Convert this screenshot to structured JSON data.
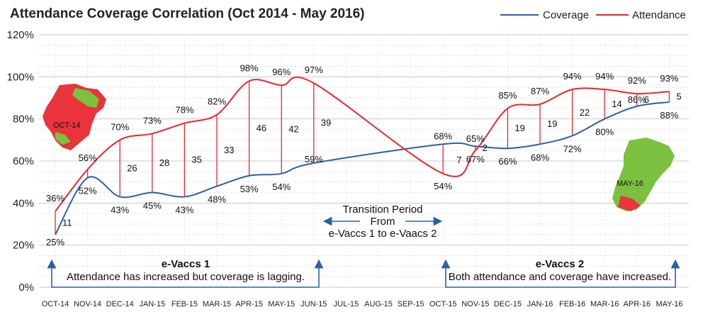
{
  "chart_data": {
    "type": "line",
    "title": "Attendance Coverage Correlation (Oct 2014 - May 2016)",
    "categories": [
      "OCT-14",
      "NOV-14",
      "DEC-14",
      "JAN-15",
      "FEB-15",
      "MAR-15",
      "APR-15",
      "MAY-15",
      "JUN-15",
      "JUL-15",
      "AUG-15",
      "SEP-15",
      "OCT-15",
      "NOV-15",
      "DEC-15",
      "JAN-16",
      "FEB-16",
      "MAR-16",
      "APR-16",
      "MAY-16"
    ],
    "y_ticks": [
      "0%",
      "20%",
      "40%",
      "60%",
      "80%",
      "100%",
      "120%"
    ],
    "ylim": [
      0,
      120
    ],
    "grid": true,
    "legend_position": "top-right",
    "series": [
      {
        "name": "Coverage",
        "color": "#2f5fa8",
        "values": [
          25,
          52,
          43,
          45,
          43,
          48,
          53,
          54,
          59,
          null,
          null,
          null,
          68,
          67,
          66,
          68,
          72,
          80,
          86,
          88
        ],
        "labels": [
          "25%",
          "52%",
          "43%",
          "45%",
          "43%",
          "48%",
          "53%",
          "54%",
          "59%",
          "",
          "",
          "",
          "68%",
          "67%",
          "66%",
          "68%",
          "72%",
          "80%",
          "86%",
          "88%"
        ]
      },
      {
        "name": "Attendance",
        "color": "#e8262e",
        "values": [
          36,
          56,
          70,
          73,
          78,
          82,
          98,
          96,
          97,
          null,
          null,
          null,
          54,
          65,
          85,
          87,
          94,
          94,
          92,
          93
        ],
        "labels": [
          "36%",
          "56%",
          "70%",
          "73%",
          "78%",
          "82%",
          "98%",
          "96%",
          "97%",
          "",
          "",
          "",
          "54%",
          "65%",
          "85%",
          "87%",
          "94%",
          "94%",
          "92%",
          "93%"
        ]
      }
    ],
    "gaps": [
      "11",
      "",
      "26",
      "28",
      "35",
      "33",
      "46",
      "42",
      "39",
      "",
      "",
      "",
      "",
      "2",
      "19",
      "19",
      "22",
      "14",
      "6",
      "5"
    ],
    "gap_extra": {
      "label": "7"
    },
    "annotations": {
      "map_left": "OCT-14",
      "map_right": "MAY-16",
      "transition": [
        "Transition Period",
        "From",
        "e-Vaccs 1 to e-Vaacs 2"
      ],
      "phase1_title": "e-Vaccs 1",
      "phase1_text": "Attendance has increased but coverage is lagging.",
      "phase2_title": "e-Vaccs 2",
      "phase2_text": "Both attendance and coverage have increased."
    }
  }
}
